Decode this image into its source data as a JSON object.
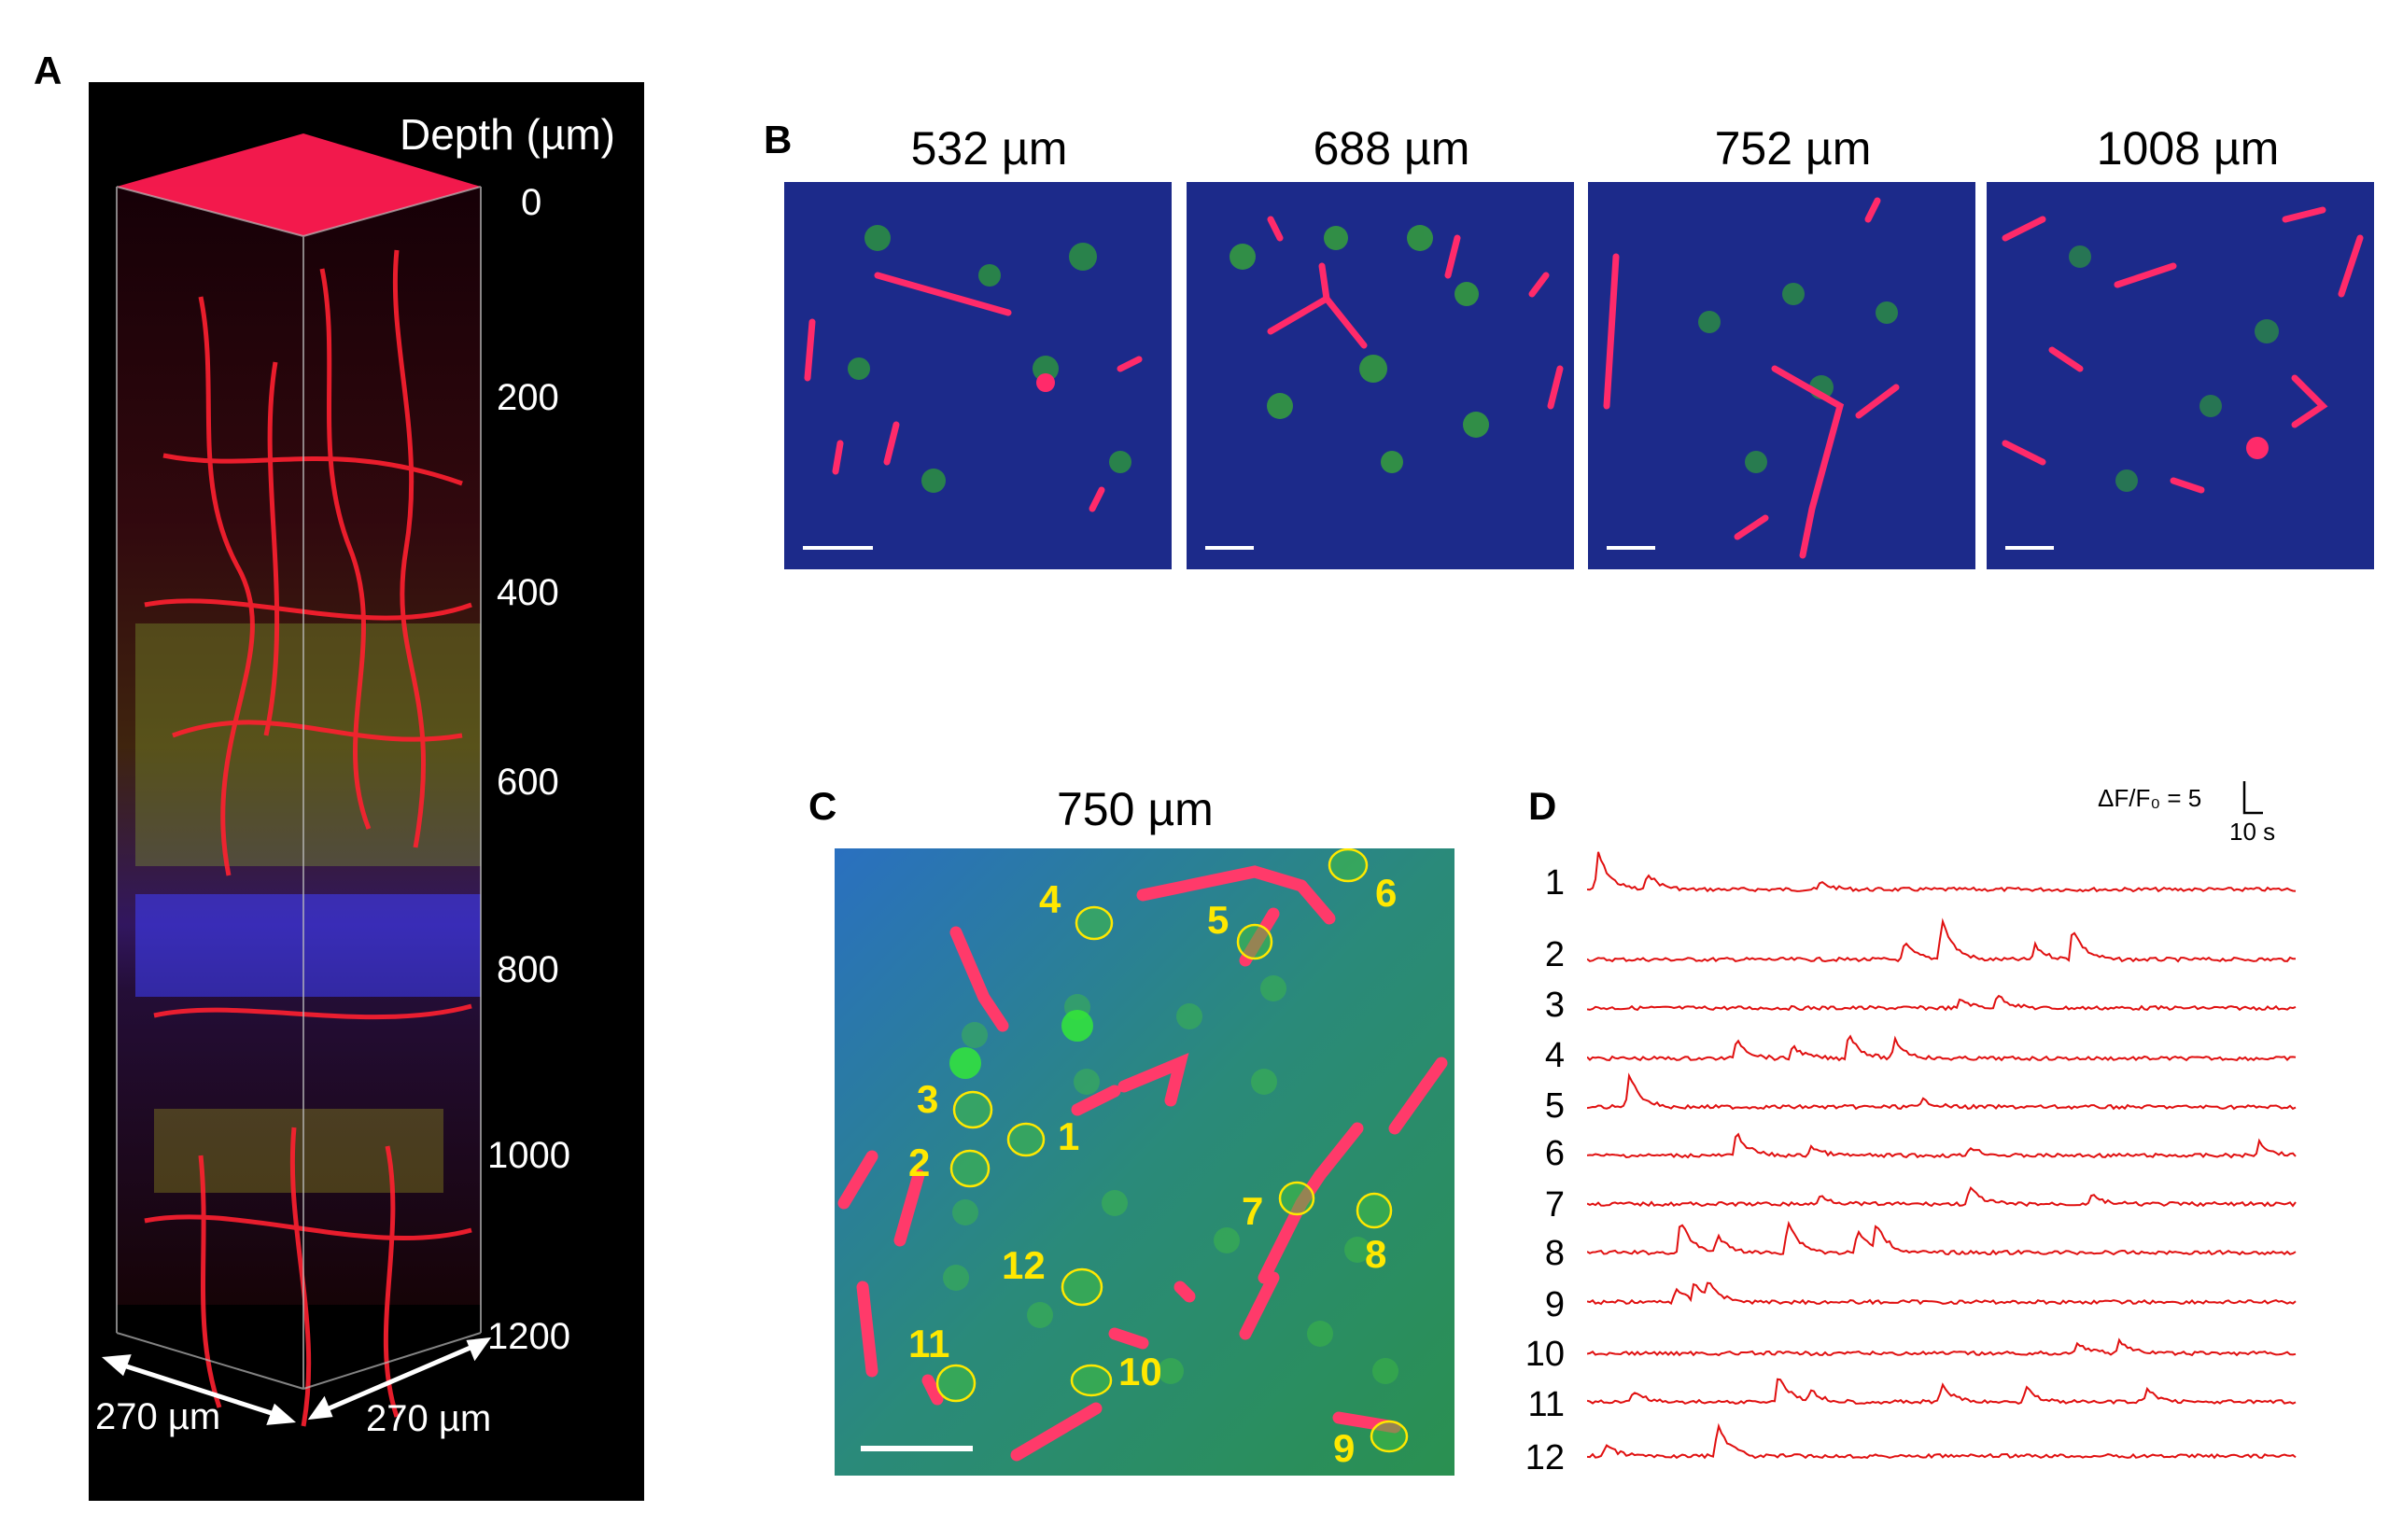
{
  "panels": {
    "A": {
      "letter": "A",
      "depth_title": "Depth (µm)",
      "depth_ticks": [
        "0",
        "200",
        "400",
        "600",
        "800",
        "1000",
        "1200"
      ],
      "width_label_left": "270 µm",
      "width_label_right": "270 µm"
    },
    "B": {
      "letter": "B",
      "images": [
        {
          "depth": "532 µm"
        },
        {
          "depth": "688 µm"
        },
        {
          "depth": "752 µm"
        },
        {
          "depth": "1008 µm"
        }
      ]
    },
    "C": {
      "letter": "C",
      "depth": "750 µm",
      "roi_labels": [
        "1",
        "2",
        "3",
        "4",
        "5",
        "6",
        "7",
        "8",
        "9",
        "10",
        "11",
        "12"
      ]
    },
    "D": {
      "letter": "D",
      "scale_y": "ΔF/F₀ = 5",
      "scale_x": "10 s",
      "trace_labels": [
        "1",
        "2",
        "3",
        "4",
        "5",
        "6",
        "7",
        "8",
        "9",
        "10",
        "11",
        "12"
      ]
    }
  },
  "colors": {
    "vessel": "#ff2a4a",
    "neuron": "#33cc33",
    "tissue": "#2240c8",
    "roi": "#ffe800",
    "trace": "#e01010"
  }
}
